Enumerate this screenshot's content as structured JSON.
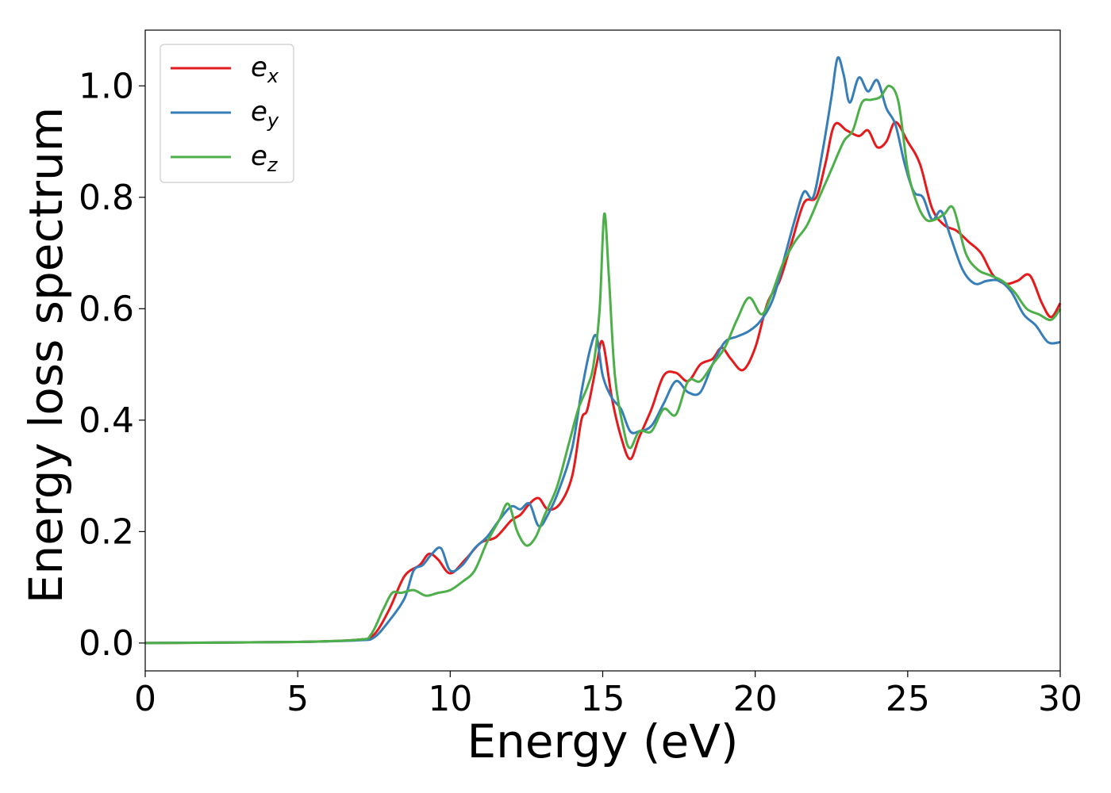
{
  "chart_data": {
    "type": "line",
    "title": "",
    "xlabel": "Energy (eV)",
    "ylabel": "Energy loss spectrum",
    "xlim": [
      0,
      30
    ],
    "ylim": [
      -0.05,
      1.1
    ],
    "xticks": [
      0,
      5,
      10,
      15,
      20,
      25,
      30
    ],
    "xtick_labels": [
      "0",
      "5",
      "10",
      "15",
      "20",
      "25",
      "30"
    ],
    "yticks": [
      0.0,
      0.2,
      0.4,
      0.6,
      0.8,
      1.0
    ],
    "ytick_labels": [
      "0.0",
      "0.2",
      "0.4",
      "0.6",
      "0.8",
      "1.0"
    ],
    "grid": false,
    "legend_position": "top-left",
    "series": [
      {
        "name": "e_x",
        "legend_base": "e",
        "legend_sub": "x",
        "color": "#e41a1c",
        "x": [
          0,
          5,
          7,
          7.5,
          8,
          8.5,
          9,
          9.3,
          9.6,
          10,
          10.5,
          11,
          11.5,
          12,
          12.3,
          12.6,
          12.9,
          13.2,
          13.6,
          14,
          14.3,
          14.5,
          14.8,
          15,
          15.3,
          15.6,
          15.9,
          16.2,
          16.6,
          17,
          17.4,
          17.8,
          18.2,
          18.6,
          18.9,
          19.2,
          19.6,
          20,
          20.4,
          20.8,
          21.2,
          21.6,
          22,
          22.3,
          22.6,
          23,
          23.4,
          23.7,
          24,
          24.3,
          24.6,
          25,
          25.4,
          25.8,
          26.2,
          26.6,
          27,
          27.4,
          27.8,
          28.2,
          28.6,
          29,
          29.4,
          29.7,
          30
        ],
        "y": [
          0.0,
          0.002,
          0.006,
          0.015,
          0.06,
          0.12,
          0.14,
          0.16,
          0.15,
          0.125,
          0.15,
          0.18,
          0.19,
          0.22,
          0.23,
          0.25,
          0.26,
          0.24,
          0.25,
          0.3,
          0.4,
          0.42,
          0.5,
          0.54,
          0.44,
          0.37,
          0.33,
          0.37,
          0.42,
          0.48,
          0.485,
          0.47,
          0.5,
          0.51,
          0.53,
          0.51,
          0.49,
          0.53,
          0.61,
          0.65,
          0.72,
          0.79,
          0.8,
          0.86,
          0.93,
          0.92,
          0.91,
          0.92,
          0.89,
          0.9,
          0.935,
          0.9,
          0.86,
          0.78,
          0.75,
          0.74,
          0.72,
          0.7,
          0.66,
          0.645,
          0.65,
          0.66,
          0.61,
          0.585,
          0.61
        ]
      },
      {
        "name": "e_y",
        "legend_base": "e",
        "legend_sub": "y",
        "color": "#377eb8",
        "x": [
          0,
          5,
          7,
          7.5,
          8,
          8.5,
          8.8,
          9.1,
          9.4,
          9.7,
          10,
          10.4,
          10.8,
          11.2,
          11.6,
          12,
          12.3,
          12.6,
          12.9,
          13.2,
          13.6,
          14,
          14.3,
          14.6,
          14.8,
          15,
          15.3,
          15.6,
          15.9,
          16.2,
          16.6,
          17,
          17.4,
          17.8,
          18.2,
          18.6,
          19,
          19.4,
          19.8,
          20.2,
          20.6,
          21,
          21.3,
          21.6,
          21.9,
          22.2,
          22.5,
          22.7,
          22.9,
          23.1,
          23.4,
          23.7,
          24,
          24.3,
          24.6,
          24.9,
          25.2,
          25.5,
          25.8,
          26.1,
          26.4,
          26.8,
          27.2,
          27.6,
          28,
          28.4,
          28.8,
          29.2,
          29.6,
          30
        ],
        "y": [
          0.0,
          0.002,
          0.005,
          0.01,
          0.04,
          0.08,
          0.13,
          0.14,
          0.16,
          0.17,
          0.13,
          0.14,
          0.17,
          0.19,
          0.22,
          0.245,
          0.24,
          0.25,
          0.21,
          0.23,
          0.28,
          0.35,
          0.45,
          0.53,
          0.55,
          0.48,
          0.44,
          0.42,
          0.38,
          0.38,
          0.39,
          0.43,
          0.47,
          0.45,
          0.45,
          0.5,
          0.54,
          0.55,
          0.56,
          0.58,
          0.62,
          0.7,
          0.76,
          0.81,
          0.8,
          0.88,
          0.98,
          1.05,
          1.02,
          0.97,
          1.015,
          0.99,
          1.01,
          0.96,
          0.93,
          0.86,
          0.81,
          0.8,
          0.76,
          0.775,
          0.73,
          0.67,
          0.645,
          0.65,
          0.65,
          0.63,
          0.59,
          0.57,
          0.54,
          0.54
        ]
      },
      {
        "name": "e_z",
        "legend_base": "e",
        "legend_sub": "z",
        "color": "#4daf4a",
        "x": [
          0,
          5,
          7,
          7.4,
          7.8,
          8.1,
          8.4,
          8.8,
          9.2,
          9.6,
          10,
          10.4,
          10.8,
          11.2,
          11.6,
          11.9,
          12.2,
          12.5,
          12.8,
          13.1,
          13.5,
          13.9,
          14.2,
          14.5,
          14.7,
          14.9,
          15.05,
          15.2,
          15.4,
          15.7,
          15.9,
          16.2,
          16.6,
          17,
          17.4,
          17.8,
          18.2,
          18.6,
          19,
          19.4,
          19.8,
          20.2,
          20.5,
          20.9,
          21.3,
          21.7,
          22.1,
          22.5,
          22.9,
          23.2,
          23.5,
          23.8,
          24.1,
          24.4,
          24.7,
          25,
          25.3,
          25.6,
          25.9,
          26.2,
          26.5,
          26.9,
          27.3,
          27.7,
          28.1,
          28.5,
          28.9,
          29.3,
          29.7,
          30
        ],
        "y": [
          0.0,
          0.002,
          0.006,
          0.015,
          0.06,
          0.09,
          0.09,
          0.095,
          0.085,
          0.09,
          0.095,
          0.11,
          0.13,
          0.18,
          0.22,
          0.25,
          0.2,
          0.175,
          0.19,
          0.23,
          0.28,
          0.36,
          0.42,
          0.46,
          0.5,
          0.6,
          0.77,
          0.66,
          0.48,
          0.38,
          0.35,
          0.38,
          0.38,
          0.42,
          0.41,
          0.47,
          0.47,
          0.5,
          0.53,
          0.58,
          0.62,
          0.59,
          0.62,
          0.68,
          0.72,
          0.75,
          0.8,
          0.85,
          0.9,
          0.92,
          0.97,
          0.975,
          0.98,
          1.0,
          0.97,
          0.85,
          0.79,
          0.76,
          0.76,
          0.77,
          0.78,
          0.7,
          0.67,
          0.66,
          0.65,
          0.63,
          0.6,
          0.59,
          0.58,
          0.6
        ]
      }
    ]
  }
}
